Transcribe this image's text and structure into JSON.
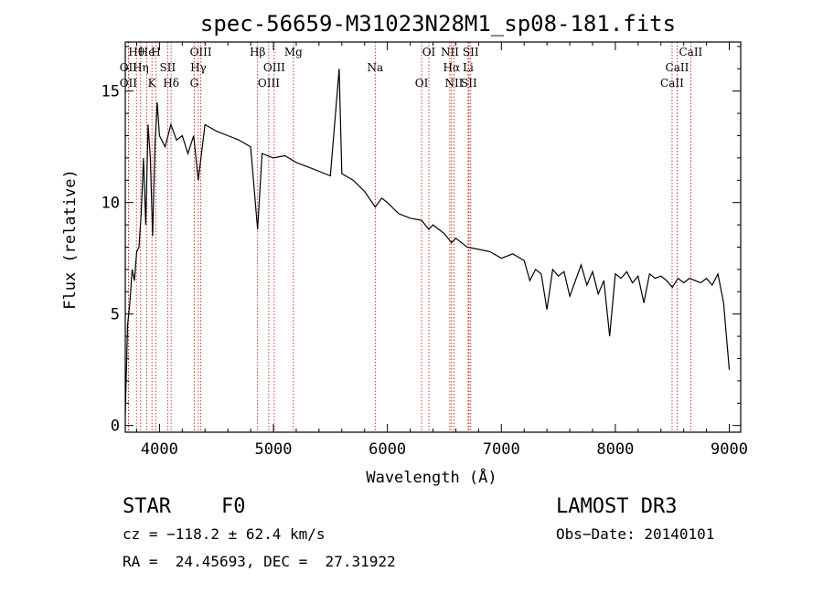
{
  "chart_data": {
    "type": "line",
    "title": "spec-56659-M31023N28M1_sp08-181.fits",
    "xlabel": "Wavelength (Å)",
    "ylabel": "Flux (relative)",
    "xlim": [
      3700,
      9100
    ],
    "ylim": [
      -0.3,
      17.2
    ],
    "x_ticks": [
      4000,
      5000,
      6000,
      7000,
      8000,
      9000
    ],
    "y_ticks": [
      0,
      5,
      10,
      15
    ],
    "grid": false,
    "series": [
      {
        "name": "spectrum",
        "x": [
          3700,
          3720,
          3740,
          3760,
          3780,
          3800,
          3820,
          3840,
          3860,
          3880,
          3900,
          3920,
          3940,
          3960,
          3980,
          4000,
          4050,
          4100,
          4150,
          4200,
          4250,
          4300,
          4340,
          4400,
          4500,
          4600,
          4700,
          4800,
          4861,
          4900,
          5000,
          5100,
          5200,
          5300,
          5400,
          5500,
          5577,
          5600,
          5700,
          5800,
          5893,
          5950,
          6000,
          6100,
          6200,
          6300,
          6364,
          6400,
          6500,
          6563,
          6600,
          6700,
          6800,
          6900,
          7000,
          7100,
          7200,
          7250,
          7300,
          7350,
          7400,
          7450,
          7500,
          7550,
          7600,
          7650,
          7700,
          7750,
          7800,
          7850,
          7900,
          7950,
          8000,
          8050,
          8100,
          8150,
          8200,
          8250,
          8300,
          8350,
          8400,
          8450,
          8500,
          8550,
          8600,
          8650,
          8700,
          8750,
          8800,
          8850,
          8900,
          8950,
          9000
        ],
        "y": [
          0.5,
          4.5,
          5.5,
          7.0,
          6.5,
          7.8,
          8.0,
          9.5,
          12.0,
          9.0,
          13.5,
          12.0,
          8.5,
          12.5,
          14.5,
          13.0,
          12.5,
          13.5,
          12.8,
          13.0,
          12.2,
          13.0,
          11.0,
          13.5,
          13.2,
          13.0,
          12.8,
          12.5,
          8.8,
          12.2,
          12.0,
          12.1,
          11.8,
          11.6,
          11.4,
          11.2,
          16.0,
          11.3,
          11.0,
          10.5,
          9.8,
          10.2,
          10.0,
          9.5,
          9.3,
          9.2,
          8.8,
          9.0,
          8.6,
          8.2,
          8.4,
          8.0,
          7.9,
          7.8,
          7.5,
          7.7,
          7.4,
          6.5,
          7.0,
          6.8,
          5.2,
          7.0,
          6.7,
          6.9,
          5.8,
          6.5,
          7.2,
          6.3,
          6.9,
          5.9,
          6.5,
          4.0,
          6.8,
          6.6,
          6.9,
          6.4,
          6.7,
          5.5,
          6.8,
          6.6,
          6.7,
          6.5,
          6.2,
          6.6,
          6.4,
          6.6,
          6.5,
          6.4,
          6.6,
          6.3,
          6.8,
          5.5,
          2.5
        ]
      }
    ],
    "line_ids": [
      {
        "label": "Hθ",
        "wavelength": 3798
      },
      {
        "label": "OII",
        "wavelength": 3727
      },
      {
        "label": "OII",
        "wavelength": 3727
      },
      {
        "label": "He",
        "wavelength": 3889
      },
      {
        "label": "Hη",
        "wavelength": 3835
      },
      {
        "label": "K",
        "wavelength": 3934
      },
      {
        "label": "H",
        "wavelength": 3969
      },
      {
        "label": "SII",
        "wavelength": 4072
      },
      {
        "label": "Hδ",
        "wavelength": 4102
      },
      {
        "label": "OIII",
        "wavelength": 4363
      },
      {
        "label": "Hγ",
        "wavelength": 4341
      },
      {
        "label": "G",
        "wavelength": 4305
      },
      {
        "label": "Hβ",
        "wavelength": 4861
      },
      {
        "label": "OIII",
        "wavelength": 5007
      },
      {
        "label": "OIII",
        "wavelength": 4959
      },
      {
        "label": "Mg",
        "wavelength": 5175
      },
      {
        "label": "Na",
        "wavelength": 5893
      },
      {
        "label": "OI",
        "wavelength": 6300
      },
      {
        "label": "OI",
        "wavelength": 6364
      },
      {
        "label": "Hα",
        "wavelength": 6563
      },
      {
        "label": "SII",
        "wavelength": 6716
      },
      {
        "label": "NII",
        "wavelength": 6548
      },
      {
        "label": "Li",
        "wavelength": 6708
      },
      {
        "label": "NII",
        "wavelength": 6584
      },
      {
        "label": "SII",
        "wavelength": 6731
      },
      {
        "label": "CaII",
        "wavelength": 8542
      },
      {
        "label": "CaII",
        "wavelength": 8498
      },
      {
        "label": "CaII",
        "wavelength": 8662
      }
    ]
  },
  "info": {
    "class_label": "STAR",
    "subclass": "F0",
    "survey": "LAMOST DR3",
    "cz": "cz = −118.2 ± 62.4 km/s",
    "obs_date": "Obs−Date: 20140101",
    "coords": "RA =  24.45693, DEC =  27.31922"
  },
  "colors": {
    "line": "#000000",
    "marker": "#cc0000",
    "axis": "#000000"
  }
}
